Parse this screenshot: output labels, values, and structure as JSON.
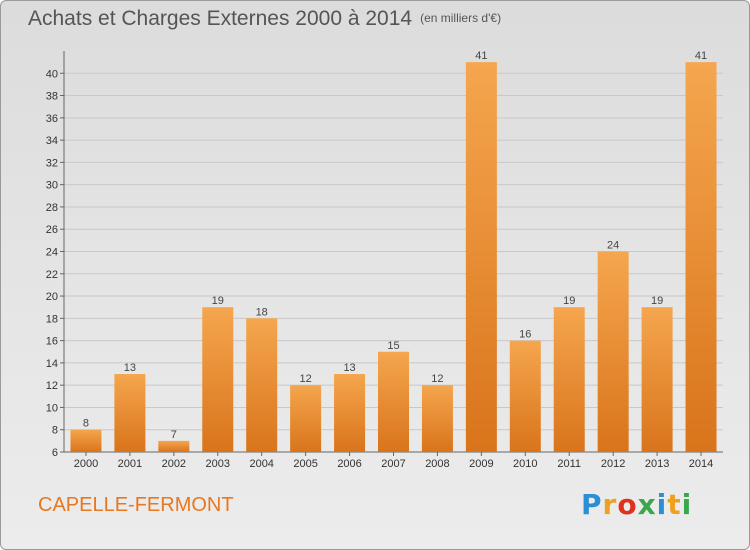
{
  "header": {
    "title": "Achats et Charges Externes 2000 à 2014",
    "unit": "(en milliers d'€)"
  },
  "footer": {
    "place": "CAPELLE-FERMONT",
    "logo_letters": [
      "P",
      "r",
      "o",
      "x",
      "i",
      "t",
      "i"
    ],
    "logo_colors": [
      "#2a8fd4",
      "#f0a020",
      "#e0301e",
      "#3aa84a",
      "#2a8fd4",
      "#f0a020",
      "#3aa84a"
    ]
  },
  "chart_data": {
    "type": "bar",
    "title": "Achats et Charges Externes 2000 à 2014",
    "categories": [
      "2000",
      "2001",
      "2002",
      "2003",
      "2004",
      "2005",
      "2006",
      "2007",
      "2008",
      "2009",
      "2010",
      "2011",
      "2012",
      "2013",
      "2014"
    ],
    "values": [
      8,
      13,
      7,
      19,
      18,
      12,
      13,
      15,
      12,
      41,
      16,
      19,
      24,
      19,
      41
    ],
    "ylim": [
      6,
      42
    ],
    "yticks": [
      6,
      8,
      10,
      12,
      14,
      16,
      18,
      20,
      22,
      24,
      26,
      28,
      30,
      32,
      34,
      36,
      38,
      40
    ],
    "grid": true,
    "colors": {
      "bar_top": "#f5a64e",
      "bar_bottom": "#d9741b",
      "grid": "#c8c8c8"
    }
  }
}
